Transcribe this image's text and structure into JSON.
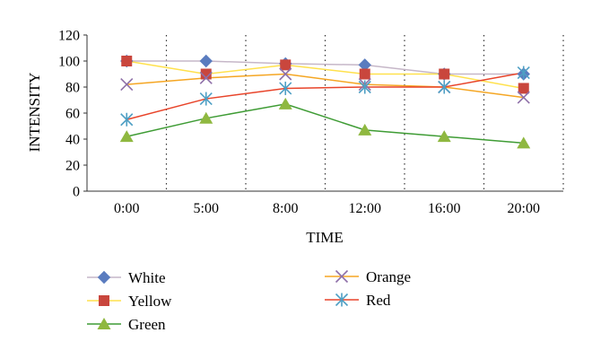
{
  "chart_data": {
    "type": "line",
    "title": "",
    "xlabel": "TIME",
    "ylabel": "INTENSITY",
    "categories": [
      "0:00",
      "5:00",
      "8:00",
      "12:00",
      "16:00",
      "20:00"
    ],
    "ylim": [
      0,
      120
    ],
    "yticks": [
      0,
      20,
      40,
      60,
      80,
      100,
      120
    ],
    "grid": "vertical dotted lines between categories",
    "legend_position": "bottom",
    "series": [
      {
        "name": "White",
        "marker": "diamond",
        "line_color": "#c6b7c8",
        "marker_color": "#5a7cbf",
        "values": [
          100,
          100,
          98,
          97,
          90,
          90
        ]
      },
      {
        "name": "Yellow",
        "marker": "square",
        "line_color": "#ffe14d",
        "marker_color": "#c9463d",
        "values": [
          100,
          90,
          97,
          90,
          90,
          79
        ]
      },
      {
        "name": "Green",
        "marker": "triangle",
        "line_color": "#3f9c35",
        "marker_color": "#8fb840",
        "values": [
          42,
          56,
          67,
          47,
          42,
          37
        ]
      },
      {
        "name": "Orange",
        "marker": "x",
        "line_color": "#f5a623",
        "marker_color": "#8e6fa8",
        "values": [
          82,
          87,
          90,
          82,
          80,
          72
        ]
      },
      {
        "name": "Red",
        "marker": "asterisk",
        "line_color": "#e8442a",
        "marker_color": "#4e9fc4",
        "values": [
          55,
          71,
          79,
          80,
          80,
          91
        ]
      }
    ]
  }
}
